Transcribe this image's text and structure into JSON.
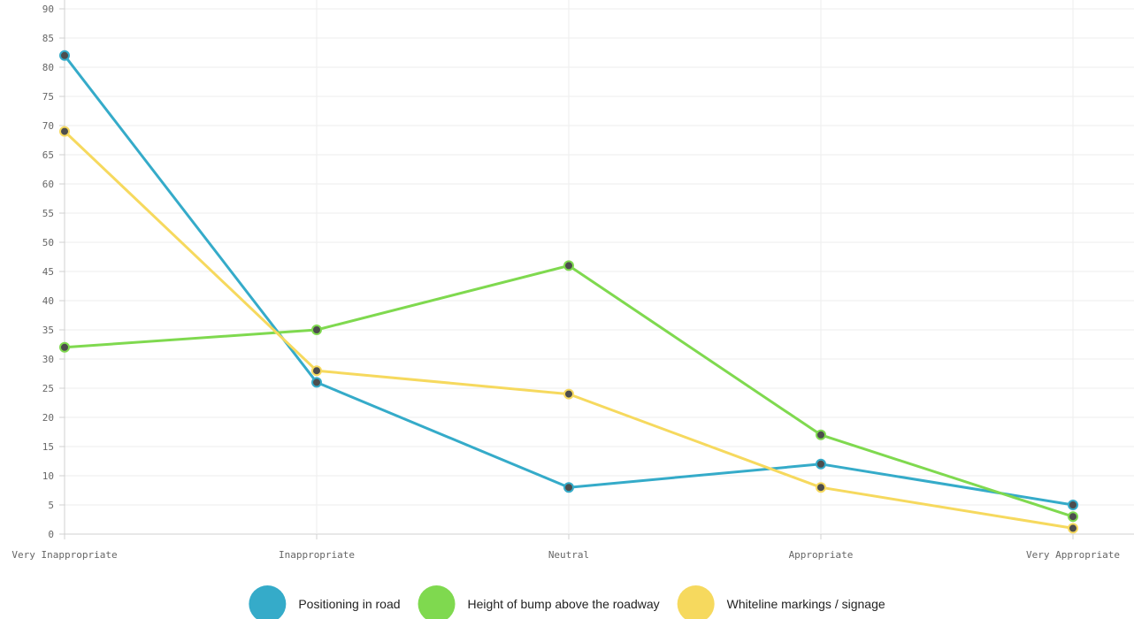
{
  "chart_data": {
    "type": "line",
    "categories": [
      "Very Inappropriate",
      "Inappropriate",
      "Neutral",
      "Appropriate",
      "Very Appropriate"
    ],
    "ylim": [
      0,
      90
    ],
    "ytick_step": 5,
    "grid": true,
    "legend_position": "bottom",
    "series": [
      {
        "name": "Positioning in road",
        "color": "#35abc9",
        "values": [
          82,
          26,
          8,
          12,
          5
        ]
      },
      {
        "name": "Height of bump above the roadway",
        "color": "#7fd94f",
        "values": [
          32,
          35,
          46,
          17,
          3
        ]
      },
      {
        "name": "Whiteline markings / signage",
        "color": "#f6d95e",
        "values": [
          69,
          28,
          24,
          8,
          1
        ]
      }
    ],
    "point_fill": "#4d4d4d",
    "gridline_color": "#eeeeee",
    "axis_color": "#d0d0d0"
  }
}
